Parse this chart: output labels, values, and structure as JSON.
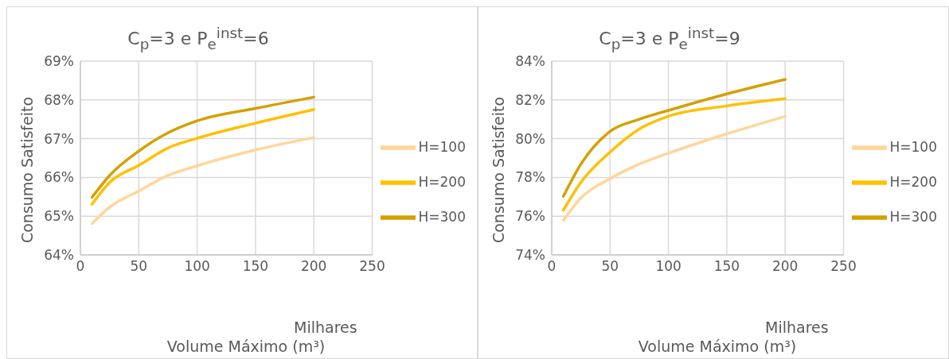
{
  "chart_data": [
    {
      "type": "line",
      "title": "C$_{p}$=3 e P$_{e}$$^{inst}$=6",
      "xlabel": "Volume Máximo (m³)",
      "ylabel": "Consumo Satisfeito",
      "annotations": [
        "Milhares"
      ],
      "x": [
        10,
        25,
        50,
        75,
        100,
        150,
        200
      ],
      "series": [
        {
          "name": "H=100",
          "color": "#ffd699",
          "values": [
            64.81,
            65.23,
            65.65,
            66.05,
            66.3,
            66.71,
            67.03
          ]
        },
        {
          "name": "H=200",
          "color": "#ffc000",
          "values": [
            65.31,
            65.87,
            66.31,
            66.76,
            67.01,
            67.4,
            67.75
          ]
        },
        {
          "name": "H=300",
          "color": "#d4a000",
          "values": [
            65.49,
            66.05,
            66.68,
            67.15,
            67.46,
            67.78,
            68.07
          ]
        }
      ],
      "xlim": [
        0,
        250
      ],
      "xticks": [
        0,
        50,
        100,
        150,
        200,
        250
      ],
      "ylim": [
        64,
        69
      ],
      "yticks": [
        {
          "value": 64,
          "label": "64%"
        },
        {
          "value": 65,
          "label": "65%"
        },
        {
          "value": 66,
          "label": "66%"
        },
        {
          "value": 67,
          "label": "67%"
        },
        {
          "value": 68,
          "label": "68%"
        },
        {
          "value": 69,
          "label": "69%"
        }
      ],
      "grid": true,
      "legend": "right",
      "marker": "none",
      "line_style": "solid"
    },
    {
      "type": "line",
      "title": "C$_{p}$=3 e P$_{e}$$^{inst}$=9",
      "xlabel": "Volume Máximo (m³)",
      "ylabel": "Consumo Satisfeito",
      "annotations": [
        "Milhares"
      ],
      "x": [
        10,
        25,
        50,
        75,
        100,
        150,
        200
      ],
      "series": [
        {
          "name": "H=100",
          "color": "#ffd699",
          "values": [
            75.78,
            76.94,
            77.94,
            78.69,
            79.25,
            80.25,
            81.15
          ]
        },
        {
          "name": "H=200",
          "color": "#ffc000",
          "values": [
            76.31,
            77.75,
            79.31,
            80.5,
            81.16,
            81.69,
            82.06
          ]
        },
        {
          "name": "H=300",
          "color": "#d4a000",
          "values": [
            77.03,
            78.69,
            80.38,
            81.0,
            81.46,
            82.31,
            83.06
          ]
        }
      ],
      "xlim": [
        0,
        250
      ],
      "xticks": [
        0,
        50,
        100,
        150,
        200,
        250
      ],
      "ylim": [
        74,
        84
      ],
      "yticks": [
        {
          "value": 74,
          "label": "74%"
        },
        {
          "value": 76,
          "label": "76%"
        },
        {
          "value": 78,
          "label": "78%"
        },
        {
          "value": 80,
          "label": "80%"
        },
        {
          "value": 82,
          "label": "82%"
        },
        {
          "value": 84,
          "label": "84%"
        }
      ],
      "grid": true,
      "legend": "right",
      "marker": "none",
      "line_style": "solid"
    }
  ]
}
